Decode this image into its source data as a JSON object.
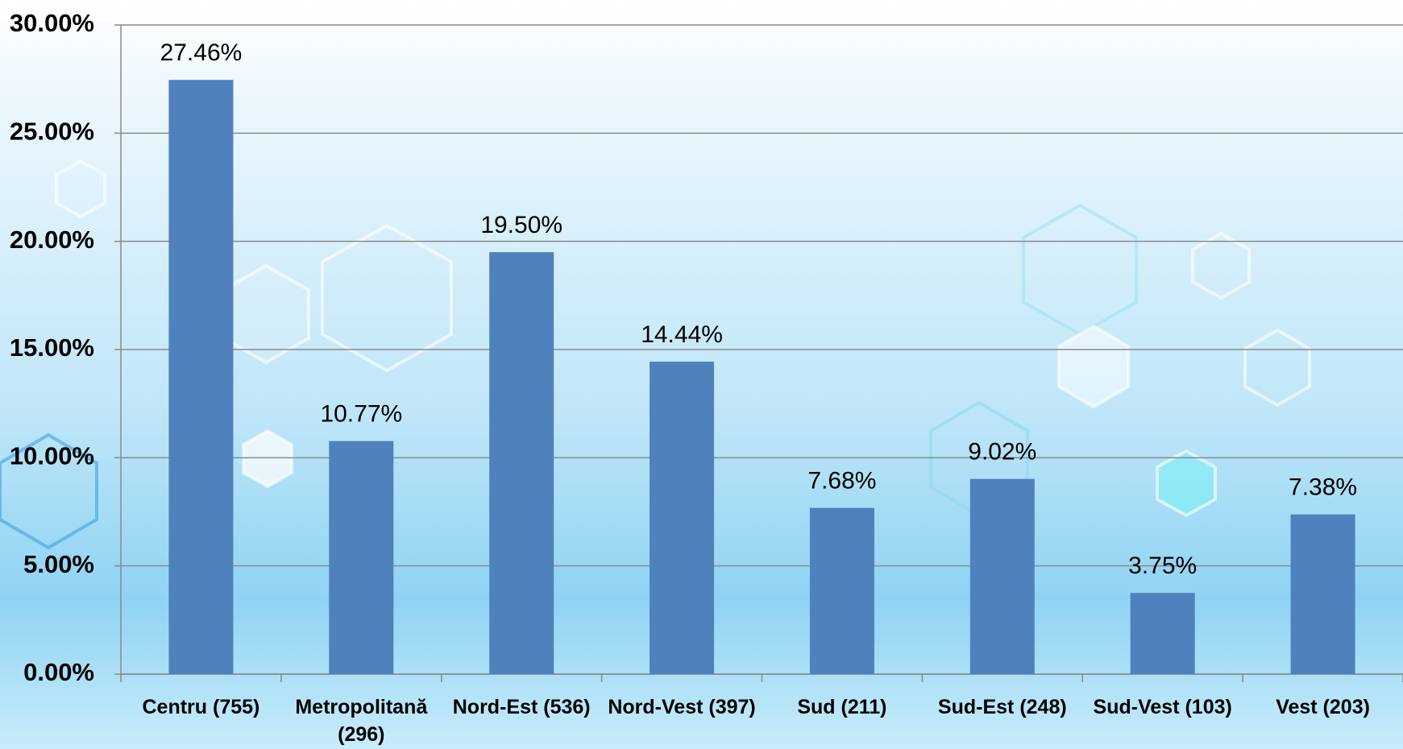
{
  "chart_data": {
    "type": "bar",
    "categories": [
      "Centru (755)",
      "Metropolitană (296)",
      "Nord-Est (536)",
      "Nord-Vest (397)",
      "Sud (211)",
      "Sud-Est (248)",
      "Sud-Vest (103)",
      "Vest (203)"
    ],
    "values": [
      27.46,
      10.77,
      19.5,
      14.44,
      7.68,
      9.02,
      3.75,
      7.38
    ],
    "value_labels": [
      "27.46%",
      "10.77%",
      "19.50%",
      "14.44%",
      "7.68%",
      "9.02%",
      "3.75%",
      "7.38%"
    ],
    "color": "#4f81bd",
    "ylim": [
      0,
      30
    ],
    "yticks": [
      {
        "value": 0,
        "label": "0.00%"
      },
      {
        "value": 5,
        "label": "5.00%"
      },
      {
        "value": 10,
        "label": "10.00%"
      },
      {
        "value": 15,
        "label": "15.00%"
      },
      {
        "value": 20,
        "label": "20.00%"
      },
      {
        "value": 25,
        "label": "25.00%"
      },
      {
        "value": 30,
        "label": "30.00%"
      }
    ],
    "grid": true
  }
}
